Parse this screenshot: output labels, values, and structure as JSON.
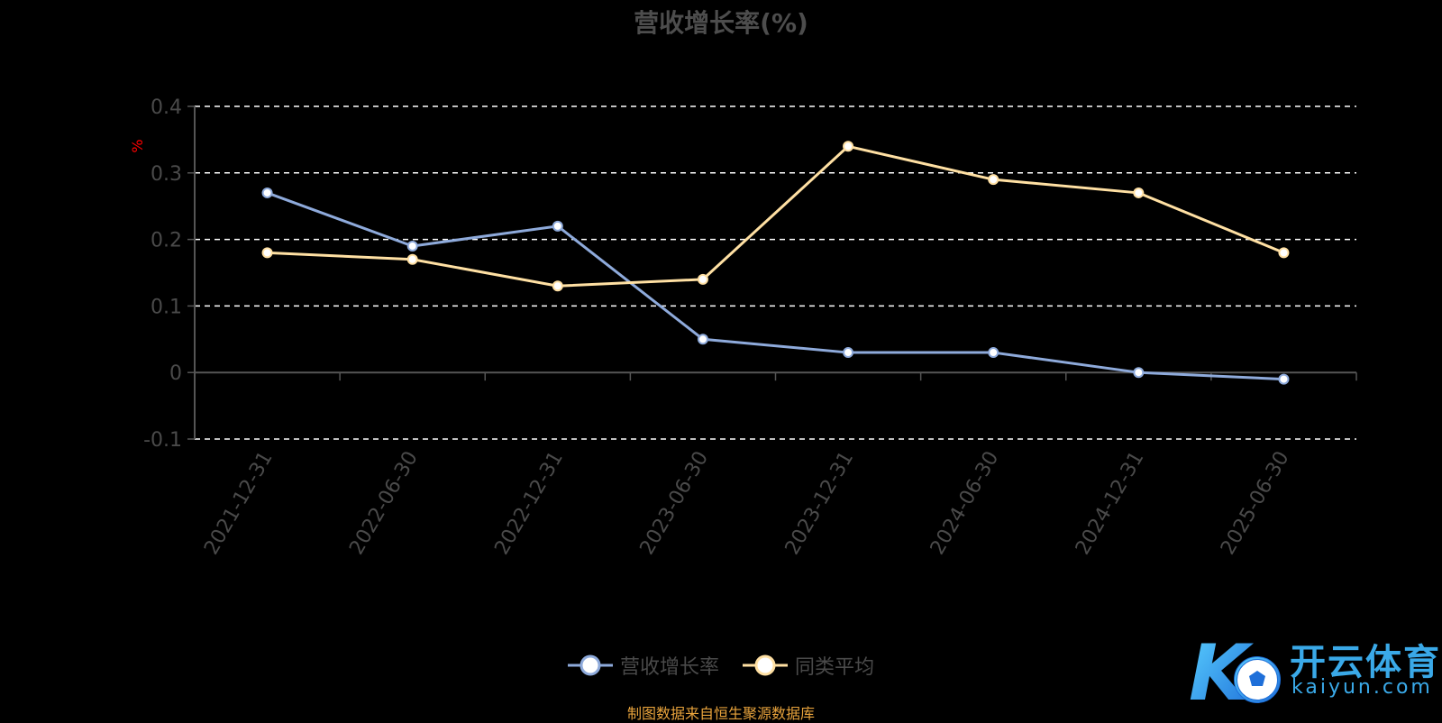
{
  "chart_data": {
    "type": "line",
    "title": "营收增长率(%)",
    "ylabel": "%",
    "xlabel": "",
    "categories": [
      "2021-12-31",
      "2022-06-30",
      "2022-12-31",
      "2023-06-30",
      "2023-12-31",
      "2024-06-30",
      "2024-12-31",
      "2025-06-30"
    ],
    "ylim": [
      -0.1,
      0.4
    ],
    "yticks": [
      "0.4",
      "0.3",
      "0.2",
      "0.1",
      "0",
      "-0.1"
    ],
    "grid": "dashed horizontal",
    "legend_position": "bottom",
    "series": [
      {
        "name": "营收增长率",
        "color": "#8eaadb",
        "values": [
          0.27,
          0.19,
          0.22,
          0.05,
          0.03,
          0.03,
          0.0,
          -0.01
        ]
      },
      {
        "name": "同类平均",
        "color": "#ffe0a3",
        "values": [
          0.18,
          0.17,
          0.13,
          0.14,
          0.34,
          0.29,
          0.27,
          0.18
        ]
      }
    ]
  },
  "source_note": "制图数据来自恒生聚源数据库",
  "watermark": {
    "brand": "开云体育",
    "domain": "kaiyun.com",
    "logo_letter": "K",
    "colors": {
      "primary": "#3aa9e8",
      "secondary": "#1e6fd9"
    }
  },
  "colors": {
    "background": "#000000",
    "axis": "#555555",
    "grid": "#ffffff",
    "axis_label": "#ff0000",
    "tick_text": "#4a4a4a"
  }
}
